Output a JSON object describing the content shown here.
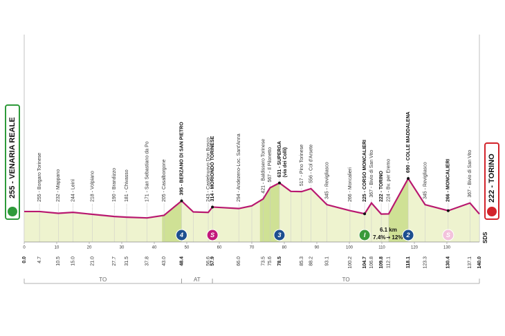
{
  "chart_data": {
    "type": "area",
    "start": "255 - VENARIA REALE",
    "finish": "222 - TORINO",
    "logo": "SDS",
    "x": [
      0,
      4.7,
      10.5,
      15,
      21,
      27.7,
      31.5,
      37.8,
      43,
      48.4,
      52,
      56.6,
      57.9,
      66,
      70,
      73.5,
      75.6,
      78.5,
      82,
      85.3,
      88.2,
      93.1,
      100.2,
      104.7,
      106.8,
      109.8,
      112.1,
      118.1,
      123.3,
      130.4,
      137.1,
      140
    ],
    "values": [
      255,
      255,
      232,
      244,
      218,
      190,
      181,
      171,
      205,
      395,
      250,
      243,
      314,
      294,
      330,
      421,
      567,
      631,
      520,
      517,
      556,
      345,
      266,
      225,
      367,
      222,
      224,
      690,
      345,
      266,
      367,
      222
    ],
    "labels": [
      null,
      "255 - Borgaro Torinese",
      "232 - Mappano",
      "244 - Leinì",
      "218 - Volpiano",
      "190 - Brandizzo",
      "181 - Chivasso",
      "171 - San Sebastiano da Po",
      "205 - Casalborgone",
      "395 - BERZANO DI SAN PIETRO",
      null,
      "243 - Castelnuovo Don Bosco",
      "314 - MORIONDO TORINESE",
      "294 - Andezeno-Loc. Sant'Anna",
      null,
      "421 - Baldissero Torinese",
      "567 - Il Pilonetto",
      "631 - SUPERGA",
      null,
      "517 - Pino Torinese",
      "556 - Col d'Arsete",
      "345 - Revigliasco",
      "266 - Moncalieri",
      "225 - CORSO MONCALIERI",
      "367 - Bivio di San Vito",
      "222 - TORINO",
      "224 - Bv. per Eremo",
      "690 - COLLE MADDALENA",
      "345 - Revigliasco",
      "266 - MONCALIERI",
      "367 - Bivio di San Vito",
      null
    ],
    "superga_note": "(via dei Colli)",
    "xticks": [
      {
        "value": 0,
        "label": "0.0"
      },
      4.7,
      10.5,
      {
        "value": 15,
        "label": "15.0"
      },
      {
        "value": 21,
        "label": "21.0"
      },
      27.7,
      31.5,
      37.8,
      {
        "value": 43,
        "label": "43.0"
      },
      48.4,
      56.6,
      57.9,
      {
        "value": 66,
        "label": "66.0"
      },
      73.5,
      75.6,
      78.5,
      85.3,
      88.2,
      93.1,
      100.2,
      104.7,
      106.8,
      109.8,
      112.1,
      118.1,
      123.3,
      130.4,
      137.1,
      {
        "value": 140,
        "label": "140.0"
      }
    ],
    "scale_ticks": [
      0,
      10,
      20,
      30,
      40,
      50,
      60,
      70,
      80,
      90,
      100,
      110,
      120,
      130
    ],
    "xlim": [
      0,
      140
    ],
    "ylim": [
      0,
      800
    ],
    "color": "#b8186f",
    "fill": "#eef3cf",
    "climb_fill": "#cfe195",
    "badges": [
      {
        "km": 48.4,
        "text": "4",
        "color": "#1d4f8f",
        "climb": true
      },
      {
        "km": 57.9,
        "text": "S",
        "color": "#c2187a",
        "climb": false
      },
      {
        "km": 78.5,
        "text": "3",
        "color": "#1d4f8f",
        "climb": true
      },
      {
        "km": 104.7,
        "text": "I",
        "color": "#3a9a3a",
        "climb": false
      },
      {
        "km": 118.1,
        "text": "2",
        "color": "#1d4f8f",
        "climb": true
      },
      {
        "km": 130.4,
        "text": "S",
        "color": "#f3c2dc",
        "climb": false
      }
    ],
    "climb_note": {
      "km": 112,
      "length": "6.1 km",
      "avg": "7.4%",
      "max": "12%"
    },
    "sectors": [
      {
        "name": "TO",
        "start": 0,
        "end": 48.4
      },
      {
        "name": "AT",
        "start": 48.4,
        "end": 57.9
      },
      {
        "name": "TO",
        "start": 57.9,
        "end": 140
      }
    ]
  }
}
